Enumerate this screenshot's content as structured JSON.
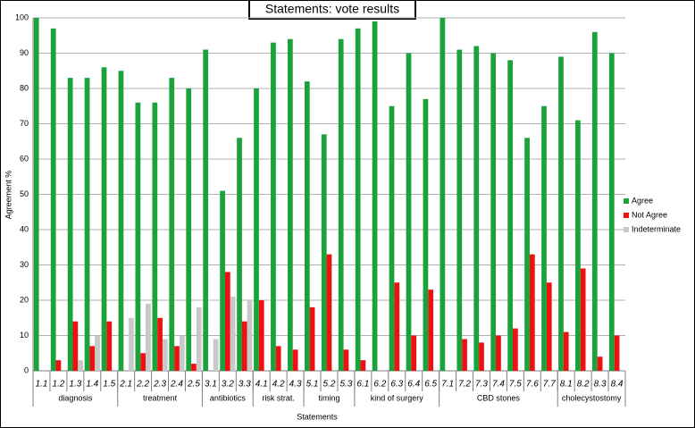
{
  "chart_data": {
    "type": "bar",
    "title": "Statements: vote results",
    "x_label": "Statements",
    "y_label": "Agreement %",
    "groups": [
      {
        "name": "diagnosis",
        "categories": [
          "1.1",
          "1.2",
          "1.3",
          "1.4",
          "1.5"
        ]
      },
      {
        "name": "treatment",
        "categories": [
          "2.1",
          "2.2",
          "2.3",
          "2.4",
          "2.5"
        ]
      },
      {
        "name": "antibiotics",
        "categories": [
          "3.1",
          "3.2",
          "3.3"
        ]
      },
      {
        "name": "risk strat.",
        "categories": [
          "4.1",
          "4.2",
          "4.3"
        ]
      },
      {
        "name": "timing",
        "categories": [
          "5.1",
          "5.2",
          "5.3"
        ]
      },
      {
        "name": "kind of surgery",
        "categories": [
          "6.1",
          "6.2",
          "6.3",
          "6.4",
          "6.5"
        ]
      },
      {
        "name": "CBD stones",
        "categories": [
          "7.1",
          "7.2",
          "7.3",
          "7.4",
          "7.5",
          "7.6",
          "7.7"
        ]
      },
      {
        "name": "cholecystostomy",
        "categories": [
          "8.1",
          "8.2",
          "8.3",
          "8.4"
        ]
      }
    ],
    "series": [
      {
        "name": "Agree",
        "color": "#1aa33c",
        "values": [
          100,
          97,
          83,
          83,
          86,
          85,
          76,
          76,
          83,
          80,
          91,
          51,
          66,
          80,
          93,
          94,
          82,
          67,
          94,
          97,
          99,
          75,
          90,
          77,
          100,
          91,
          92,
          90,
          88,
          66,
          75,
          89,
          71,
          96,
          90
        ]
      },
      {
        "name": "Not Agree",
        "color": "#ee1111",
        "values": [
          0,
          3,
          14,
          7,
          14,
          0,
          5,
          15,
          7,
          2,
          0,
          28,
          14,
          20,
          7,
          6,
          18,
          33,
          6,
          3,
          0,
          25,
          10,
          23,
          0,
          9,
          8,
          10,
          12,
          33,
          25,
          11,
          29,
          4,
          10
        ]
      },
      {
        "name": "Indeterminate",
        "color": "#c8c8c8",
        "values": [
          0,
          0,
          3,
          10,
          0,
          15,
          19,
          9,
          10,
          18,
          9,
          21,
          20,
          0,
          0,
          0,
          0,
          0,
          0,
          0,
          0,
          0,
          0,
          0,
          0,
          0,
          0,
          0,
          0,
          0,
          0,
          0,
          0,
          0,
          0
        ]
      }
    ],
    "ylim": [
      0,
      100
    ],
    "yticks": [
      0,
      10,
      20,
      30,
      40,
      50,
      60,
      70,
      80,
      90,
      100
    ],
    "grid": true,
    "legend": "right"
  }
}
